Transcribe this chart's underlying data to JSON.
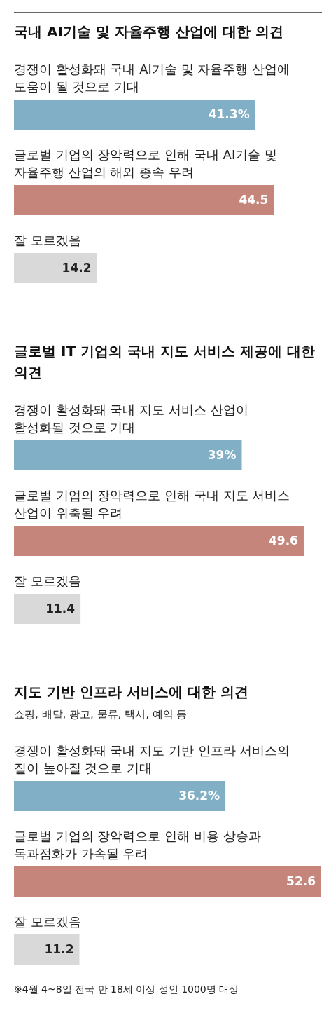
{
  "chart_data": [
    {
      "type": "bar",
      "orientation": "horizontal",
      "title": "국내 AI기술 및 자율주행 산업에 대한 의견",
      "categories": [
        "경쟁이 활성화돼 국내 AI기술 및 자율주행 산업에 도움이 될 것으로 기대",
        "글로벌 기업의 장악력으로 인해 국내 AI기술 및 자율주행 산업의 해외 종속 우려",
        "잘 모르겠음"
      ],
      "values": [
        41.3,
        44.5,
        14.2
      ],
      "colors": [
        "#80afc6",
        "#c5857b",
        "#d9d9d9"
      ],
      "value_labels": [
        "41.3%",
        "44.5",
        "14.2"
      ]
    },
    {
      "type": "bar",
      "orientation": "horizontal",
      "title": "글로벌 IT 기업의 국내 지도 서비스 제공에 대한 의견",
      "categories": [
        "경쟁이 활성화돼 국내 지도 서비스 산업이 활성화될 것으로 기대",
        "글로벌 기업의 장악력으로 인해 국내 지도 서비스 산업이 위축될 우려",
        "잘 모르겠음"
      ],
      "values": [
        39,
        49.6,
        11.4
      ],
      "colors": [
        "#80afc6",
        "#c5857b",
        "#d9d9d9"
      ],
      "value_labels": [
        "39%",
        "49.6",
        "11.4"
      ]
    },
    {
      "type": "bar",
      "orientation": "horizontal",
      "title": "지도 기반 인프라 서비스에 대한 의견",
      "subtitle": "쇼핑, 배달, 광고, 물류, 택시, 예약 등",
      "categories": [
        "경쟁이 활성화돼 국내 지도 기반 인프라 서비스의 질이 높아질 것으로 기대",
        "글로벌 기업의 장악력으로 인해 비용 상승과 독과점화가 가속될 우려",
        "잘 모르겠음"
      ],
      "values": [
        36.2,
        52.6,
        11.2
      ],
      "colors": [
        "#80afc6",
        "#c5857b",
        "#d9d9d9"
      ],
      "value_labels": [
        "36.2%",
        "52.6",
        "11.2"
      ],
      "annotations": [
        "※4월 4~8일 전국 만 18세 이상 성인 1000명 대상"
      ]
    }
  ]
}
